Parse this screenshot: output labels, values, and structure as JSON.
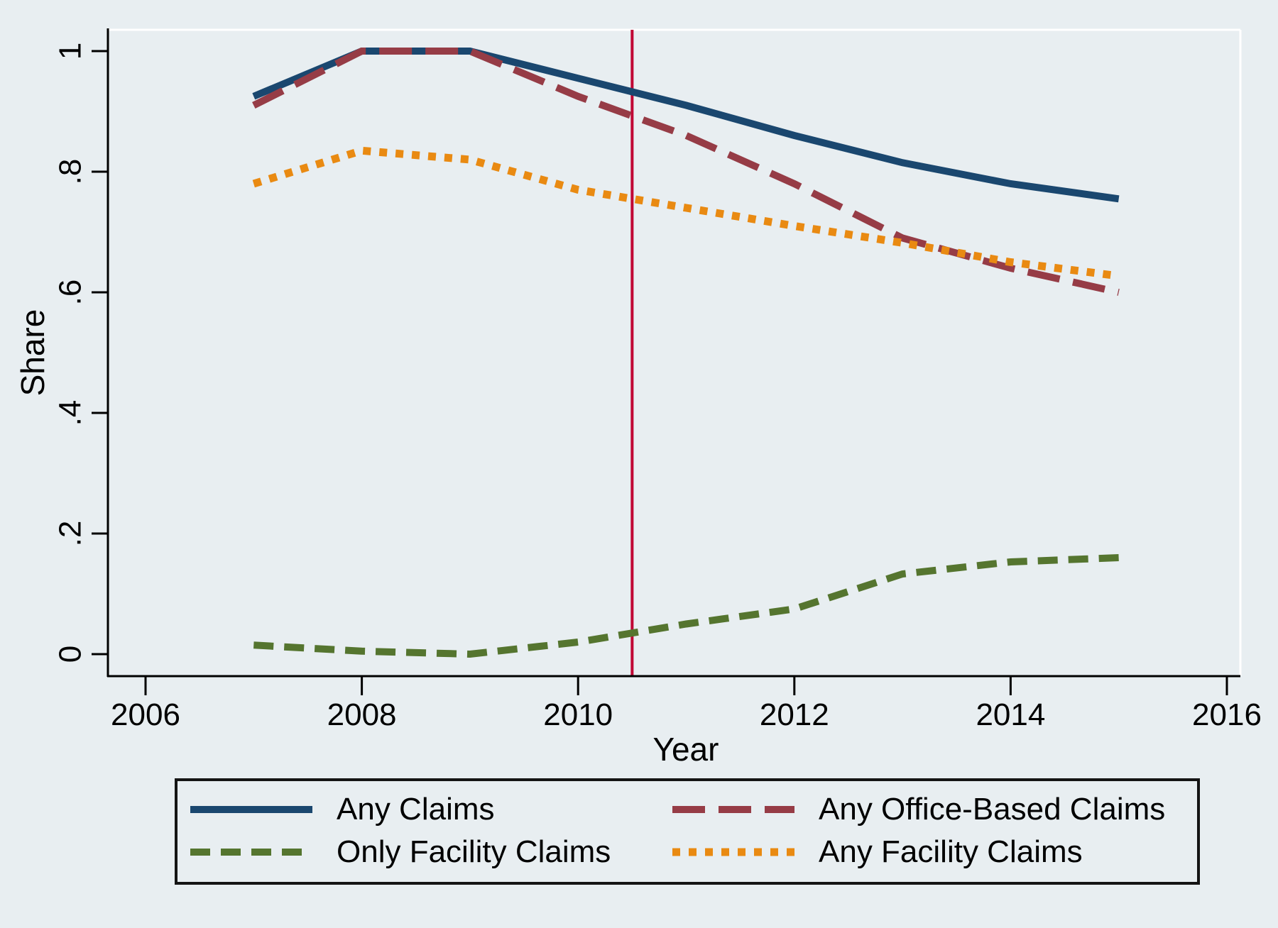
{
  "figure": {
    "background_color": "#e8eef1",
    "plot_border_color": "#ffffff",
    "axis_color": "#000000",
    "text_color": "#000000"
  },
  "chart_data": {
    "type": "line",
    "title": "",
    "xlabel": "Year",
    "ylabel": "Share",
    "xlim": [
      2006,
      2016
    ],
    "ylim": [
      0,
      1
    ],
    "grid": false,
    "legend_position": "bottom",
    "x_ticks": {
      "values": [
        2006,
        2008,
        2010,
        2012,
        2014,
        2016
      ],
      "labels": [
        "2006",
        "2008",
        "2010",
        "2012",
        "2014",
        "2016"
      ]
    },
    "y_ticks": {
      "values": [
        0,
        0.2,
        0.4,
        0.6,
        0.8,
        1
      ],
      "labels": [
        "0",
        ".2",
        ".4",
        ".6",
        ".8",
        "1"
      ]
    },
    "x": [
      2007,
      2008,
      2009,
      2010,
      2011,
      2012,
      2013,
      2014,
      2015
    ],
    "series": [
      {
        "name": "Any Claims",
        "color": "#1a476f",
        "dash": "solid",
        "values": [
          0.925,
          1.0,
          1.0,
          0.955,
          0.91,
          0.86,
          0.815,
          0.78,
          0.755
        ]
      },
      {
        "name": "Any Office-Based Claims",
        "color": "#963c46",
        "dash": "longdash",
        "values": [
          0.91,
          1.0,
          1.0,
          0.925,
          0.86,
          0.78,
          0.69,
          0.64,
          0.6
        ]
      },
      {
        "name": "Only Facility Claims",
        "color": "#55752f",
        "dash": "dash",
        "values": [
          0.015,
          0.005,
          0.0,
          0.02,
          0.05,
          0.075,
          0.133,
          0.153,
          0.16
        ]
      },
      {
        "name": "Any Facility Claims",
        "color": "#e98a12",
        "dash": "dot",
        "values": [
          0.78,
          0.835,
          0.82,
          0.77,
          0.74,
          0.71,
          0.682,
          0.65,
          0.627
        ]
      }
    ],
    "vline": {
      "x": 2010.5,
      "color": "#c10534"
    }
  }
}
